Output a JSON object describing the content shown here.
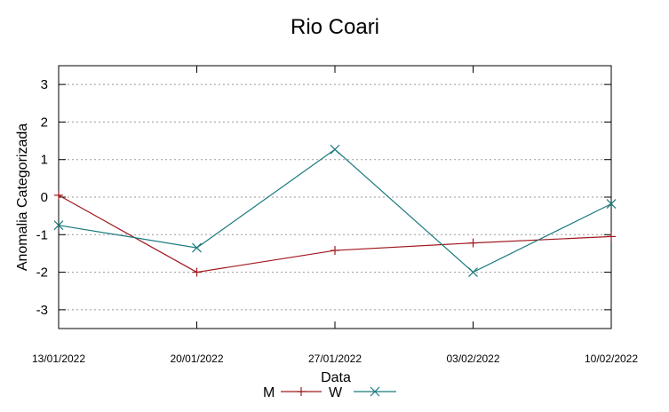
{
  "chart_data": {
    "type": "line",
    "title": "Rio Coari",
    "xlabel": "Data",
    "ylabel": "Anomalia Categorizada",
    "categories": [
      "13/01/2022",
      "20/01/2022",
      "27/01/2022",
      "03/02/2022",
      "10/02/2022"
    ],
    "ylim": [
      -3.5,
      3.5
    ],
    "yticks": [
      "3",
      "2",
      "1",
      "0",
      "-1",
      "-2",
      "-3"
    ],
    "grid": true,
    "legend_position": "bottom",
    "series": [
      {
        "name": "M",
        "color": "#a0191e",
        "marker": "plus",
        "values": [
          0.05,
          -2.0,
          -1.42,
          -1.22,
          -1.05
        ]
      },
      {
        "name": "W",
        "color": "#1a7a7e",
        "marker": "x",
        "values": [
          -0.75,
          -1.35,
          1.27,
          -2.0,
          -0.18
        ]
      }
    ]
  }
}
